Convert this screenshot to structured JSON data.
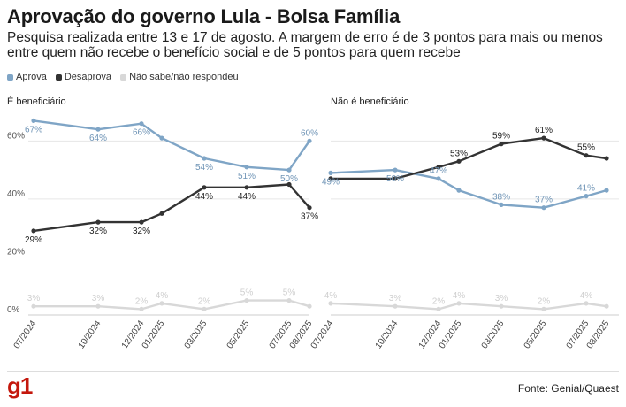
{
  "title": "Aprovação do governo Lula - Bolsa Família",
  "subtitle": "Pesquisa realizada entre 13 e 17 de agosto. A margem de erro é de 3 pontos para mais ou menos entre quem não recebe o benefício social e de 5 pontos para quem recebe",
  "legend": [
    {
      "label": "Aprova",
      "color": "#7fa5c6"
    },
    {
      "label": "Desaprova",
      "color": "#333333"
    },
    {
      "label": "Não sabe/não respondeu",
      "color": "#d8d8d8"
    }
  ],
  "footer": {
    "logo": "g1",
    "source": "Fonte: Genial/Quaest"
  },
  "chart_data": [
    {
      "type": "line",
      "title": "É beneficiário",
      "x": [
        "07/2024",
        "10/2024",
        "12/2024",
        "01/2025",
        "03/2025",
        "05/2025",
        "07/2025",
        "08/2025"
      ],
      "y_ticks": [
        "0%",
        "20%",
        "40%",
        "60%"
      ],
      "ylim": [
        0,
        72
      ],
      "grid": true,
      "series": [
        {
          "name": "Aprova",
          "color": "#7fa5c6",
          "values": [
            67,
            64,
            66,
            61,
            54,
            51,
            50,
            60
          ],
          "labels": [
            "67%",
            "64%",
            "66%",
            "",
            "54%",
            "51%",
            "50%",
            "60%"
          ]
        },
        {
          "name": "Desaprova",
          "color": "#333333",
          "values": [
            29,
            32,
            32,
            35,
            44,
            44,
            45,
            37
          ],
          "labels": [
            "29%",
            "32%",
            "32%",
            "",
            "44%",
            "44%",
            "",
            "37%"
          ]
        },
        {
          "name": "Não sabe/não respondeu",
          "color": "#d8d8d8",
          "values": [
            3,
            3,
            2,
            4,
            2,
            5,
            5,
            3
          ],
          "labels": [
            "3%",
            "3%",
            "2%",
            "4%",
            "2%",
            "5%",
            "5%",
            ""
          ]
        }
      ]
    },
    {
      "type": "line",
      "title": "Não é beneficiário",
      "x": [
        "07/2024",
        "10/2024",
        "12/2024",
        "01/2025",
        "03/2025",
        "05/2025",
        "07/2025",
        "08/2025"
      ],
      "y_ticks": [
        "0%",
        "20%",
        "40%",
        "60%"
      ],
      "ylim": [
        0,
        72
      ],
      "grid": true,
      "series": [
        {
          "name": "Aprova",
          "color": "#7fa5c6",
          "values": [
            49,
            50,
            47,
            43,
            38,
            37,
            41,
            43
          ],
          "labels": [
            "49%",
            "50%",
            "47%",
            "",
            "38%",
            "37%",
            "41%",
            ""
          ]
        },
        {
          "name": "Desaprova",
          "color": "#333333",
          "values": [
            47,
            47,
            51,
            53,
            59,
            61,
            55,
            54
          ],
          "labels": [
            "",
            "",
            "",
            "53%",
            "59%",
            "61%",
            "55%",
            ""
          ]
        },
        {
          "name": "Não sabe/não respondeu",
          "color": "#d8d8d8",
          "values": [
            4,
            3,
            2,
            4,
            3,
            2,
            4,
            3
          ],
          "labels": [
            "4%",
            "3%",
            "2%",
            "4%",
            "3%",
            "2%",
            "4%",
            ""
          ]
        }
      ]
    }
  ]
}
